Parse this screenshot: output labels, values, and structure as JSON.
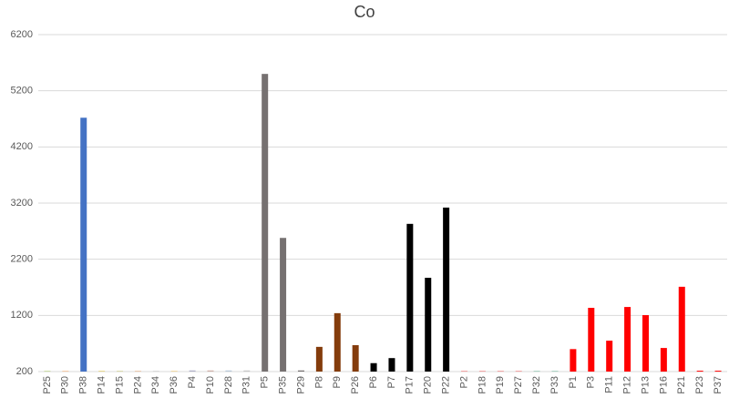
{
  "chart_data": {
    "type": "bar",
    "title": "Co",
    "categories": [
      "P25",
      "P30",
      "P38",
      "P14",
      "P15",
      "P24",
      "P34",
      "P36",
      "P4",
      "P10",
      "P28",
      "P31",
      "P5",
      "P35",
      "P29",
      "P8",
      "P9",
      "P26",
      "P6",
      "P7",
      "P17",
      "P20",
      "P22",
      "P2",
      "P18",
      "P19",
      "P27",
      "P32",
      "P33",
      "P1",
      "P3",
      "P11",
      "P12",
      "P13",
      "P16",
      "P21",
      "P23",
      "P37"
    ],
    "values": [
      215,
      215,
      4720,
      215,
      215,
      215,
      215,
      215,
      220,
      220,
      220,
      220,
      5500,
      2580,
      220,
      640,
      1240,
      670,
      350,
      440,
      2830,
      1870,
      3120,
      215,
      215,
      215,
      215,
      215,
      215,
      600,
      1335,
      750,
      1350,
      1205,
      620,
      1710,
      215,
      215
    ],
    "colors": [
      "#c9d9a0",
      "#f4c7a1",
      "#4472c4",
      "#e6d58a",
      "#d8d8a8",
      "#e8c6a8",
      "#d8d8d8",
      "#f0d8a0",
      "#b0b0c8",
      "#d0b0a8",
      "#b8c8d8",
      "#c8c8c8",
      "#767171",
      "#767171",
      "#767171",
      "#843c0c",
      "#843c0c",
      "#843c0c",
      "#000000",
      "#000000",
      "#000000",
      "#000000",
      "#000000",
      "#f0a0a0",
      "#f0a0a0",
      "#f0a0a0",
      "#f0a0a0",
      "#a8d0c0",
      "#a8d0c0",
      "#ff0000",
      "#ff0000",
      "#ff0000",
      "#ff0000",
      "#ff0000",
      "#ff0000",
      "#ff0000",
      "#ff0000",
      "#ff0000"
    ],
    "ylim": [
      200,
      6200
    ],
    "yticks": [
      200,
      1200,
      2200,
      3200,
      4200,
      5200,
      6200
    ],
    "grid": true
  }
}
